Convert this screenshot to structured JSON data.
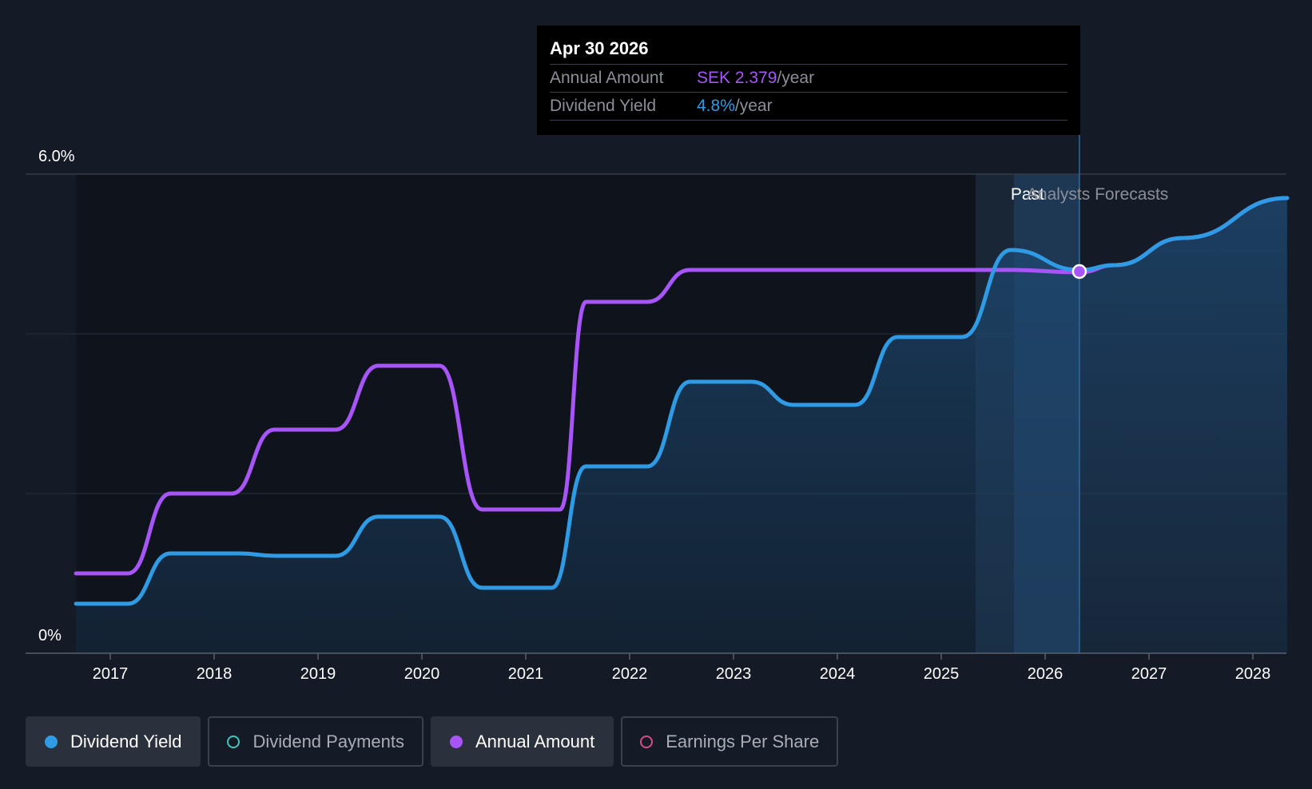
{
  "chart_data": {
    "type": "line",
    "ylim": [
      0,
      6
    ],
    "ytick_labels": [
      "0%",
      "6.0%"
    ],
    "xtick_labels": [
      "2017",
      "2018",
      "2019",
      "2020",
      "2021",
      "2022",
      "2023",
      "2024",
      "2025",
      "2026",
      "2027",
      "2028"
    ],
    "xlim": [
      2016.67,
      2028.33
    ],
    "past_label": "Past",
    "forecast_label": "Analysts Forecasts",
    "forecast_start": 2025.33,
    "current_date_x": 2026.33,
    "series": [
      {
        "name": "Dividend Yield",
        "color": "#2f9be5",
        "points": [
          [
            2016.67,
            0.62
          ],
          [
            2017.17,
            0.62
          ],
          [
            2017.58,
            1.25
          ],
          [
            2018.25,
            1.25
          ],
          [
            2018.58,
            1.22
          ],
          [
            2019.17,
            1.22
          ],
          [
            2019.58,
            1.71
          ],
          [
            2020.17,
            1.71
          ],
          [
            2020.58,
            0.82
          ],
          [
            2021.25,
            0.82
          ],
          [
            2021.58,
            2.34
          ],
          [
            2022.17,
            2.34
          ],
          [
            2022.58,
            3.4
          ],
          [
            2023.17,
            3.4
          ],
          [
            2023.58,
            3.11
          ],
          [
            2024.17,
            3.11
          ],
          [
            2024.58,
            3.96
          ],
          [
            2025.2,
            3.96
          ],
          [
            2025.67,
            5.05
          ],
          [
            2026.33,
            4.8
          ],
          [
            2026.67,
            4.86
          ],
          [
            2027.33,
            5.2
          ],
          [
            2028.33,
            5.7
          ]
        ]
      },
      {
        "name": "Annual Amount",
        "color": "#a855f7",
        "points": [
          [
            2016.67,
            1.0
          ],
          [
            2017.17,
            1.0
          ],
          [
            2017.58,
            2.0
          ],
          [
            2018.17,
            2.0
          ],
          [
            2018.58,
            2.8
          ],
          [
            2019.17,
            2.8
          ],
          [
            2019.58,
            3.6
          ],
          [
            2020.17,
            3.6
          ],
          [
            2020.58,
            1.8
          ],
          [
            2021.33,
            1.8
          ],
          [
            2021.58,
            4.4
          ],
          [
            2022.17,
            4.4
          ],
          [
            2022.58,
            4.8
          ],
          [
            2025.67,
            4.8
          ],
          [
            2026.33,
            4.77
          ],
          [
            2026.67,
            4.86
          ],
          [
            2027.33,
            5.2
          ],
          [
            2028.33,
            5.7
          ]
        ]
      }
    ]
  },
  "tooltip": {
    "date": "Apr 30 2026",
    "annual_amount_label": "Annual Amount",
    "annual_amount_value": "SEK 2.379",
    "annual_amount_unit": "/year",
    "dividend_yield_label": "Dividend Yield",
    "dividend_yield_value": "4.8%",
    "dividend_yield_unit": "/year"
  },
  "legend": {
    "items": [
      {
        "label": "Dividend Yield",
        "active": true,
        "color": "#2f9be5"
      },
      {
        "label": "Dividend Payments",
        "active": false,
        "color": "#3fc6bd"
      },
      {
        "label": "Annual Amount",
        "active": true,
        "color": "#a855f7"
      },
      {
        "label": "Earnings Per Share",
        "active": false,
        "color": "#d94c8a"
      }
    ]
  }
}
